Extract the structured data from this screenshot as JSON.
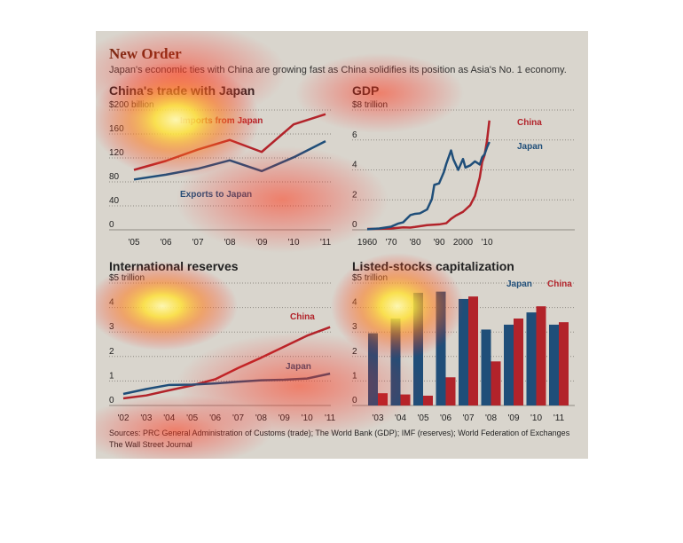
{
  "header": {
    "title": "New Order",
    "subtitle": "Japan's economic ties with China are growing fast as China solidifies its position as Asia's No. 1 economy."
  },
  "footer": {
    "sources": "Sources: PRC General Administration of Customs (trade); The World Bank (GDP); IMF (reserves); World Federation of Exchanges",
    "brand": "The Wall Street Journal"
  },
  "colors": {
    "china": "#b2232a",
    "japan": "#1f4e79",
    "panel": "#d9d5cd",
    "grid": "#8f8b84"
  },
  "chart_data": [
    {
      "type": "line",
      "title": "China's trade with Japan",
      "ylabel": "$200 billion",
      "categories": [
        "'05",
        "'06",
        "'07",
        "'08",
        "'09",
        "'10",
        "'11"
      ],
      "yticks": [
        0,
        40,
        80,
        120,
        160,
        "$200 billion"
      ],
      "ylim": [
        0,
        200
      ],
      "series": [
        {
          "name": "Imports from Japan",
          "color": "#b2232a",
          "values": [
            100,
            115,
            134,
            150,
            130,
            176,
            193
          ]
        },
        {
          "name": "Exports to Japan",
          "color": "#1f4e79",
          "values": [
            84,
            92,
            102,
            116,
            98,
            121,
            148
          ]
        }
      ]
    },
    {
      "type": "line",
      "title": "GDP",
      "ylabel": "$8 trillion",
      "xticks": [
        1960,
        "'70",
        "'80",
        "'90",
        2000,
        "'10"
      ],
      "yticks": [
        0,
        2,
        4,
        6,
        "$8 trillion"
      ],
      "xlim": [
        1960,
        2011
      ],
      "ylim": [
        0,
        8
      ],
      "series": [
        {
          "name": "China",
          "color": "#b2232a",
          "x": [
            1960,
            1965,
            1970,
            1975,
            1978,
            1980,
            1985,
            1990,
            1993,
            1995,
            1997,
            2000,
            2003,
            2005,
            2007,
            2008,
            2009,
            2010,
            2011
          ],
          "values": [
            0.06,
            0.07,
            0.09,
            0.16,
            0.15,
            0.19,
            0.31,
            0.36,
            0.44,
            0.73,
            0.95,
            1.2,
            1.64,
            2.26,
            3.49,
            4.52,
            4.99,
            5.93,
            7.3
          ]
        },
        {
          "name": "Japan",
          "color": "#1f4e79",
          "x": [
            1960,
            1965,
            1970,
            1973,
            1975,
            1978,
            1980,
            1982,
            1985,
            1987,
            1988,
            1990,
            1992,
            1993,
            1995,
            1996,
            1998,
            2000,
            2001,
            2003,
            2005,
            2007,
            2008,
            2009,
            2010,
            2011
          ],
          "values": [
            0.04,
            0.09,
            0.21,
            0.42,
            0.5,
            0.98,
            1.07,
            1.1,
            1.36,
            2.05,
            3.0,
            3.1,
            3.85,
            4.4,
            5.3,
            4.7,
            4.0,
            4.73,
            4.16,
            4.3,
            4.57,
            4.36,
            4.85,
            5.04,
            5.5,
            5.87
          ]
        }
      ]
    },
    {
      "type": "line",
      "title": "International reserves",
      "ylabel": "$5 trillion",
      "categories": [
        "'02",
        "'03",
        "'04",
        "'05",
        "'06",
        "'07",
        "'08",
        "'09",
        "'10",
        "'11"
      ],
      "yticks": [
        0,
        1,
        2,
        3,
        4,
        "$5 trillion"
      ],
      "ylim": [
        0,
        5
      ],
      "series": [
        {
          "name": "China",
          "color": "#b2232a",
          "values": [
            0.29,
            0.41,
            0.62,
            0.82,
            1.07,
            1.53,
            1.95,
            2.4,
            2.85,
            3.2
          ]
        },
        {
          "name": "Japan",
          "color": "#1f4e79",
          "values": [
            0.47,
            0.67,
            0.84,
            0.85,
            0.9,
            0.97,
            1.03,
            1.05,
            1.1,
            1.3
          ]
        }
      ]
    },
    {
      "type": "bar",
      "title": "Listed-stocks capitalization",
      "ylabel": "$5 trillion",
      "categories": [
        "'03",
        "'04",
        "'05",
        "'06",
        "'07",
        "'08",
        "'09",
        "'10",
        "'11"
      ],
      "yticks": [
        0,
        1,
        2,
        3,
        4,
        "$5 trillion"
      ],
      "ylim": [
        0,
        5
      ],
      "series": [
        {
          "name": "Japan",
          "color": "#1f4e79",
          "values": [
            2.95,
            3.55,
            4.6,
            4.65,
            4.35,
            3.1,
            3.3,
            3.8,
            3.3
          ]
        },
        {
          "name": "China",
          "color": "#b2232a",
          "values": [
            0.5,
            0.45,
            0.4,
            1.15,
            4.45,
            1.8,
            3.55,
            4.05,
            3.4
          ]
        }
      ]
    }
  ]
}
